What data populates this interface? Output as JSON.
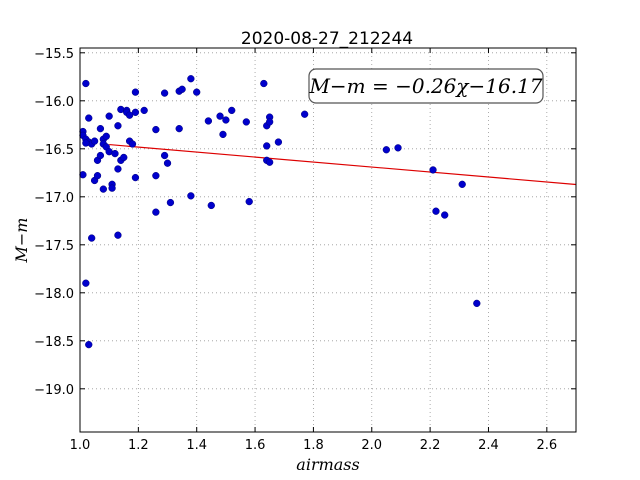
{
  "chart_data": {
    "type": "scatter",
    "title": "2020-08-27_212244",
    "xlabel": "airmass",
    "ylabel": "M−m",
    "xlim": [
      1.0,
      2.7
    ],
    "ylim": [
      -19.45,
      -15.45
    ],
    "y_inverted": true,
    "x_ticks": [
      1.0,
      1.2,
      1.4,
      1.6,
      1.8,
      2.0,
      2.2,
      2.4,
      2.6
    ],
    "x_tick_labels": [
      "1.0",
      "1.2",
      "1.4",
      "1.6",
      "1.8",
      "2.0",
      "2.2",
      "2.4",
      "2.6"
    ],
    "y_ticks": [
      -15.5,
      -16.0,
      -16.5,
      -17.0,
      -17.5,
      -18.0,
      -18.5,
      -19.0
    ],
    "y_tick_labels": [
      "−15.5",
      "−16.0",
      "−16.5",
      "−17.0",
      "−17.5",
      "−18.0",
      "−18.5",
      "−19.0"
    ],
    "grid": true,
    "point_color": "#0000cc",
    "fit_line_color": "#dd0000",
    "annotation": "M−m = −0.26χ−16.17",
    "fit": {
      "slope": -0.26,
      "intercept": -16.17,
      "x_range": [
        1.1,
        2.7
      ]
    },
    "points": [
      [
        1.01,
        -16.32
      ],
      [
        1.01,
        -16.36
      ],
      [
        1.02,
        -16.4
      ],
      [
        1.03,
        -16.43
      ],
      [
        1.04,
        -16.45
      ],
      [
        1.05,
        -16.42
      ],
      [
        1.01,
        -16.77
      ],
      [
        1.02,
        -15.82
      ],
      [
        1.03,
        -16.18
      ],
      [
        1.04,
        -17.43
      ],
      [
        1.02,
        -17.9
      ],
      [
        1.03,
        -18.54
      ],
      [
        1.05,
        -16.83
      ],
      [
        1.06,
        -16.62
      ],
      [
        1.06,
        -16.78
      ],
      [
        1.07,
        -16.57
      ],
      [
        1.07,
        -16.29
      ],
      [
        1.08,
        -16.4
      ],
      [
        1.08,
        -16.45
      ],
      [
        1.09,
        -16.37
      ],
      [
        1.09,
        -16.48
      ],
      [
        1.08,
        -16.92
      ],
      [
        1.1,
        -16.53
      ],
      [
        1.1,
        -16.16
      ],
      [
        1.11,
        -16.87
      ],
      [
        1.11,
        -16.91
      ],
      [
        1.12,
        -16.55
      ],
      [
        1.13,
        -16.71
      ],
      [
        1.13,
        -16.26
      ],
      [
        1.13,
        -17.4
      ],
      [
        1.14,
        -16.09
      ],
      [
        1.14,
        -16.62
      ],
      [
        1.15,
        -16.59
      ],
      [
        1.16,
        -16.1
      ],
      [
        1.16,
        -16.12
      ],
      [
        1.17,
        -16.15
      ],
      [
        1.17,
        -16.42
      ],
      [
        1.18,
        -16.45
      ],
      [
        1.19,
        -16.12
      ],
      [
        1.19,
        -15.91
      ],
      [
        1.19,
        -16.8
      ],
      [
        1.22,
        -16.1
      ],
      [
        1.26,
        -16.3
      ],
      [
        1.26,
        -16.78
      ],
      [
        1.26,
        -17.16
      ],
      [
        1.29,
        -15.92
      ],
      [
        1.29,
        -16.57
      ],
      [
        1.3,
        -16.65
      ],
      [
        1.31,
        -17.06
      ],
      [
        1.34,
        -15.9
      ],
      [
        1.34,
        -16.29
      ],
      [
        1.35,
        -15.88
      ],
      [
        1.38,
        -15.77
      ],
      [
        1.38,
        -16.99
      ],
      [
        1.4,
        -15.91
      ],
      [
        1.44,
        -16.21
      ],
      [
        1.45,
        -17.09
      ],
      [
        1.48,
        -16.16
      ],
      [
        1.49,
        -16.35
      ],
      [
        1.5,
        -16.2
      ],
      [
        1.52,
        -16.1
      ],
      [
        1.57,
        -16.22
      ],
      [
        1.58,
        -17.05
      ],
      [
        1.63,
        -15.82
      ],
      [
        1.64,
        -16.26
      ],
      [
        1.64,
        -16.47
      ],
      [
        1.64,
        -16.62
      ],
      [
        1.65,
        -16.17
      ],
      [
        1.65,
        -16.22
      ],
      [
        1.65,
        -16.64
      ],
      [
        1.68,
        -16.43
      ],
      [
        1.77,
        -16.14
      ],
      [
        2.05,
        -16.51
      ],
      [
        2.09,
        -16.49
      ],
      [
        2.21,
        -16.72
      ],
      [
        2.22,
        -17.15
      ],
      [
        2.25,
        -17.19
      ],
      [
        2.31,
        -16.87
      ],
      [
        2.36,
        -18.11
      ],
      [
        1.02,
        -16.44
      ]
    ]
  }
}
